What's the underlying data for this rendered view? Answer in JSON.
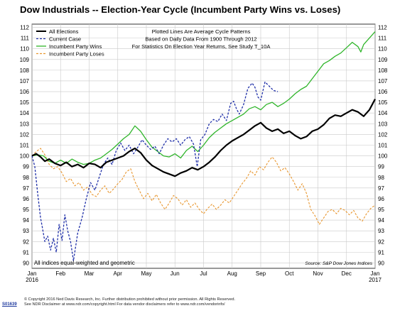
{
  "chart_data": {
    "type": "line",
    "title": "Dow Industrials -- Election-Year Cycle (Incumbent Party Wins vs. Loses)",
    "annotation_lines": [
      "Plotted Lines Are Average Cycle Patterns",
      "Based on Daily Data From 1900 Through 2012",
      "For Statistics On Election Year Returns, See Study T_10A"
    ],
    "bottom_left_note": "All indices equal-weighted and geometric",
    "source_note": "Source: S&P Dow Jones Indices",
    "ylim": [
      89.5,
      112.3
    ],
    "y_ticks": [
      90,
      91,
      92,
      93,
      94,
      95,
      96,
      97,
      98,
      99,
      100,
      101,
      102,
      103,
      104,
      105,
      106,
      107,
      108,
      109,
      110,
      111,
      112
    ],
    "x_tick_labels": [
      "Jan 2016",
      "Feb",
      "Mar",
      "Apr",
      "May",
      "Jun",
      "Jul",
      "Aug",
      "Sep",
      "Oct",
      "Nov",
      "Dec",
      "Jan 2017"
    ],
    "x_range": [
      0,
      12
    ],
    "grid": true,
    "legend_position": "top-left",
    "series": [
      {
        "name": "All Elections",
        "color": "#000000",
        "style": "solid",
        "points": [
          [
            0,
            100.0
          ],
          [
            0.15,
            100.2
          ],
          [
            0.3,
            99.9
          ],
          [
            0.45,
            99.5
          ],
          [
            0.6,
            99.7
          ],
          [
            0.8,
            99.3
          ],
          [
            1.0,
            99.1
          ],
          [
            1.2,
            99.4
          ],
          [
            1.4,
            99.0
          ],
          [
            1.6,
            99.2
          ],
          [
            1.8,
            98.9
          ],
          [
            2.0,
            99.3
          ],
          [
            2.2,
            99.2
          ],
          [
            2.4,
            98.9
          ],
          [
            2.6,
            99.4
          ],
          [
            2.8,
            99.6
          ],
          [
            3.0,
            99.8
          ],
          [
            3.2,
            100.0
          ],
          [
            3.4,
            100.4
          ],
          [
            3.6,
            100.7
          ],
          [
            3.8,
            100.3
          ],
          [
            4.0,
            99.6
          ],
          [
            4.2,
            99.1
          ],
          [
            4.4,
            98.8
          ],
          [
            4.6,
            98.5
          ],
          [
            4.8,
            98.3
          ],
          [
            5.0,
            98.1
          ],
          [
            5.2,
            98.4
          ],
          [
            5.4,
            98.6
          ],
          [
            5.6,
            98.9
          ],
          [
            5.8,
            98.7
          ],
          [
            6.0,
            99.0
          ],
          [
            6.2,
            99.4
          ],
          [
            6.4,
            99.9
          ],
          [
            6.6,
            100.5
          ],
          [
            6.8,
            101.0
          ],
          [
            7.0,
            101.4
          ],
          [
            7.2,
            101.7
          ],
          [
            7.4,
            102.0
          ],
          [
            7.6,
            102.4
          ],
          [
            7.8,
            102.8
          ],
          [
            8.0,
            103.1
          ],
          [
            8.2,
            102.6
          ],
          [
            8.4,
            102.3
          ],
          [
            8.6,
            102.5
          ],
          [
            8.8,
            102.1
          ],
          [
            9.0,
            102.3
          ],
          [
            9.2,
            101.9
          ],
          [
            9.4,
            101.6
          ],
          [
            9.6,
            101.8
          ],
          [
            9.8,
            102.3
          ],
          [
            10.0,
            102.5
          ],
          [
            10.2,
            102.9
          ],
          [
            10.4,
            103.5
          ],
          [
            10.6,
            103.8
          ],
          [
            10.8,
            103.7
          ],
          [
            11.0,
            104.0
          ],
          [
            11.2,
            104.3
          ],
          [
            11.4,
            104.1
          ],
          [
            11.6,
            103.7
          ],
          [
            11.8,
            104.3
          ],
          [
            11.9,
            104.8
          ],
          [
            12.0,
            105.3
          ]
        ]
      },
      {
        "name": "Current Case",
        "color": "#1f2fa8",
        "style": "dashed",
        "points": [
          [
            0,
            100.0
          ],
          [
            0.1,
            99.0
          ],
          [
            0.2,
            96.5
          ],
          [
            0.3,
            94.2
          ],
          [
            0.35,
            93.5
          ],
          [
            0.45,
            92.0
          ],
          [
            0.55,
            92.5
          ],
          [
            0.65,
            91.2
          ],
          [
            0.75,
            92.3
          ],
          [
            0.85,
            91.0
          ],
          [
            0.95,
            93.6
          ],
          [
            1.05,
            92.1
          ],
          [
            1.15,
            94.5
          ],
          [
            1.25,
            93.0
          ],
          [
            1.35,
            92.0
          ],
          [
            1.45,
            90.2
          ],
          [
            1.6,
            92.8
          ],
          [
            1.75,
            94.2
          ],
          [
            1.9,
            96.0
          ],
          [
            2.05,
            97.5
          ],
          [
            2.2,
            96.8
          ],
          [
            2.35,
            98.0
          ],
          [
            2.5,
            99.2
          ],
          [
            2.65,
            99.8
          ],
          [
            2.8,
            99.2
          ],
          [
            2.95,
            100.5
          ],
          [
            3.1,
            101.2
          ],
          [
            3.25,
            100.5
          ],
          [
            3.4,
            101.0
          ],
          [
            3.55,
            100.2
          ],
          [
            3.7,
            100.8
          ],
          [
            3.85,
            101.5
          ],
          [
            4.0,
            101.0
          ],
          [
            4.15,
            100.6
          ],
          [
            4.3,
            100.9
          ],
          [
            4.45,
            100.2
          ],
          [
            4.6,
            101.0
          ],
          [
            4.75,
            101.6
          ],
          [
            4.9,
            101.3
          ],
          [
            5.05,
            101.6
          ],
          [
            5.2,
            101.0
          ],
          [
            5.35,
            101.5
          ],
          [
            5.5,
            101.8
          ],
          [
            5.65,
            101.1
          ],
          [
            5.78,
            99.0
          ],
          [
            5.9,
            101.5
          ],
          [
            6.05,
            102.0
          ],
          [
            6.2,
            103.0
          ],
          [
            6.35,
            103.4
          ],
          [
            6.5,
            103.2
          ],
          [
            6.65,
            103.9
          ],
          [
            6.8,
            103.3
          ],
          [
            6.95,
            104.9
          ],
          [
            7.05,
            105.1
          ],
          [
            7.15,
            104.4
          ],
          [
            7.25,
            103.9
          ],
          [
            7.4,
            104.8
          ],
          [
            7.55,
            106.3
          ],
          [
            7.7,
            106.8
          ],
          [
            7.8,
            106.4
          ],
          [
            7.9,
            105.5
          ],
          [
            8.0,
            105.2
          ],
          [
            8.15,
            106.9
          ],
          [
            8.3,
            106.5
          ],
          [
            8.45,
            106.1
          ],
          [
            8.6,
            106.0
          ]
        ]
      },
      {
        "name": "Incumbent Party Wins",
        "color": "#2fb52a",
        "style": "solid",
        "points": [
          [
            0,
            100.0
          ],
          [
            0.2,
            100.1
          ],
          [
            0.4,
            100.0
          ],
          [
            0.6,
            99.5
          ],
          [
            0.8,
            99.3
          ],
          [
            1.0,
            99.6
          ],
          [
            1.2,
            99.3
          ],
          [
            1.4,
            99.7
          ],
          [
            1.6,
            99.4
          ],
          [
            1.8,
            99.2
          ],
          [
            2.0,
            99.3
          ],
          [
            2.2,
            99.6
          ],
          [
            2.4,
            99.8
          ],
          [
            2.6,
            100.2
          ],
          [
            2.8,
            100.6
          ],
          [
            3.0,
            101.1
          ],
          [
            3.2,
            101.6
          ],
          [
            3.4,
            102.0
          ],
          [
            3.6,
            102.8
          ],
          [
            3.8,
            102.3
          ],
          [
            4.0,
            101.5
          ],
          [
            4.2,
            100.8
          ],
          [
            4.4,
            100.4
          ],
          [
            4.6,
            100.0
          ],
          [
            4.8,
            99.9
          ],
          [
            5.0,
            100.2
          ],
          [
            5.2,
            99.8
          ],
          [
            5.4,
            100.5
          ],
          [
            5.6,
            100.9
          ],
          [
            5.8,
            100.4
          ],
          [
            6.0,
            101.0
          ],
          [
            6.2,
            101.7
          ],
          [
            6.4,
            102.2
          ],
          [
            6.6,
            102.6
          ],
          [
            6.8,
            103.0
          ],
          [
            7.0,
            103.3
          ],
          [
            7.2,
            103.6
          ],
          [
            7.4,
            103.9
          ],
          [
            7.6,
            104.4
          ],
          [
            7.8,
            104.6
          ],
          [
            8.0,
            104.3
          ],
          [
            8.2,
            104.8
          ],
          [
            8.4,
            105.0
          ],
          [
            8.6,
            104.6
          ],
          [
            8.8,
            104.9
          ],
          [
            9.0,
            105.3
          ],
          [
            9.2,
            105.8
          ],
          [
            9.4,
            106.2
          ],
          [
            9.6,
            106.5
          ],
          [
            9.8,
            107.2
          ],
          [
            10.0,
            107.9
          ],
          [
            10.2,
            108.6
          ],
          [
            10.4,
            108.9
          ],
          [
            10.6,
            109.3
          ],
          [
            10.8,
            109.6
          ],
          [
            11.0,
            110.1
          ],
          [
            11.2,
            110.6
          ],
          [
            11.4,
            110.2
          ],
          [
            11.5,
            109.7
          ],
          [
            11.6,
            110.4
          ],
          [
            11.8,
            111.0
          ],
          [
            12.0,
            111.6
          ]
        ]
      },
      {
        "name": "Incumbent Party Loses",
        "color": "#e8962e",
        "style": "dashed",
        "points": [
          [
            0,
            100.0
          ],
          [
            0.15,
            100.4
          ],
          [
            0.3,
            100.7
          ],
          [
            0.45,
            100.1
          ],
          [
            0.6,
            99.2
          ],
          [
            0.75,
            98.8
          ],
          [
            0.9,
            99.0
          ],
          [
            1.05,
            98.4
          ],
          [
            1.2,
            97.6
          ],
          [
            1.35,
            97.9
          ],
          [
            1.5,
            97.2
          ],
          [
            1.65,
            97.5
          ],
          [
            1.8,
            96.8
          ],
          [
            1.95,
            97.1
          ],
          [
            2.1,
            96.4
          ],
          [
            2.25,
            96.2
          ],
          [
            2.4,
            96.8
          ],
          [
            2.55,
            97.2
          ],
          [
            2.7,
            96.5
          ],
          [
            2.85,
            96.9
          ],
          [
            3.0,
            97.4
          ],
          [
            3.15,
            97.8
          ],
          [
            3.3,
            98.5
          ],
          [
            3.45,
            98.8
          ],
          [
            3.6,
            97.6
          ],
          [
            3.75,
            96.8
          ],
          [
            3.9,
            96.0
          ],
          [
            4.05,
            96.5
          ],
          [
            4.2,
            95.8
          ],
          [
            4.35,
            96.4
          ],
          [
            4.5,
            95.6
          ],
          [
            4.65,
            95.0
          ],
          [
            4.8,
            95.6
          ],
          [
            4.95,
            96.3
          ],
          [
            5.1,
            96.0
          ],
          [
            5.25,
            95.4
          ],
          [
            5.4,
            95.9
          ],
          [
            5.55,
            95.2
          ],
          [
            5.7,
            95.6
          ],
          [
            5.85,
            95.0
          ],
          [
            6.0,
            94.6
          ],
          [
            6.15,
            95.1
          ],
          [
            6.3,
            95.5
          ],
          [
            6.45,
            95.0
          ],
          [
            6.6,
            95.4
          ],
          [
            6.75,
            95.9
          ],
          [
            6.9,
            95.6
          ],
          [
            7.05,
            96.2
          ],
          [
            7.2,
            96.8
          ],
          [
            7.35,
            97.4
          ],
          [
            7.5,
            97.9
          ],
          [
            7.65,
            98.6
          ],
          [
            7.8,
            98.2
          ],
          [
            7.95,
            99.0
          ],
          [
            8.1,
            98.7
          ],
          [
            8.25,
            99.4
          ],
          [
            8.4,
            99.9
          ],
          [
            8.55,
            99.4
          ],
          [
            8.7,
            98.6
          ],
          [
            8.85,
            98.9
          ],
          [
            9.0,
            98.3
          ],
          [
            9.15,
            97.6
          ],
          [
            9.3,
            96.8
          ],
          [
            9.45,
            97.4
          ],
          [
            9.6,
            96.5
          ],
          [
            9.75,
            95.0
          ],
          [
            9.9,
            94.4
          ],
          [
            10.05,
            93.6
          ],
          [
            10.2,
            94.2
          ],
          [
            10.35,
            94.8
          ],
          [
            10.5,
            95.0
          ],
          [
            10.65,
            94.6
          ],
          [
            10.8,
            95.1
          ],
          [
            10.95,
            94.9
          ],
          [
            11.1,
            94.5
          ],
          [
            11.25,
            94.9
          ],
          [
            11.4,
            94.2
          ],
          [
            11.55,
            93.9
          ],
          [
            11.7,
            94.6
          ],
          [
            11.85,
            95.1
          ],
          [
            12.0,
            95.4
          ]
        ]
      }
    ]
  },
  "footer": {
    "copyright": "© Copyright 2016 Ned Davis Research, Inc. Further distribution prohibited without prior permission. All Rights Reserved.",
    "disclaimer": "See NDR Disclaimer at www.ndr.com/copyright.html   For data vendor disclaimers refer to www.ndr.com/vendorinfo/",
    "chart_id": "S01639"
  }
}
